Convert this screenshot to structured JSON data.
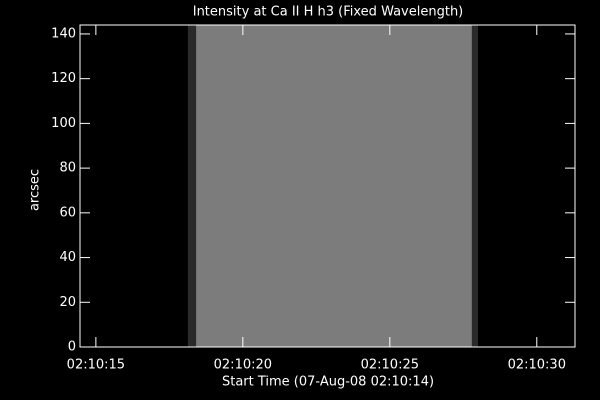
{
  "chart_data": {
    "type": "image",
    "title": "Intensity at Ca II H h3 (Fixed Wavelength)",
    "x_label": "Start Time (07-Aug-08 02:10:14)",
    "y_label": "arcsec",
    "xlim": [
      14.46,
      31.3
    ],
    "ylim": [
      0,
      144
    ],
    "xticks": [
      {
        "value": 15,
        "label": "02:10:15"
      },
      {
        "value": 20,
        "label": "02:10:20"
      },
      {
        "value": 25,
        "label": "02:10:25"
      },
      {
        "value": 30,
        "label": "02:10:30"
      }
    ],
    "yticks": [
      0,
      20,
      40,
      60,
      80,
      100,
      120,
      140
    ],
    "layers": [
      {
        "x": [
          18.13,
          28.0
        ],
        "y": [
          0,
          144
        ],
        "color": "#2a2a2a"
      },
      {
        "x": [
          18.41,
          27.79
        ],
        "y": [
          0,
          144
        ],
        "color": "#7c7c7c"
      }
    ]
  }
}
